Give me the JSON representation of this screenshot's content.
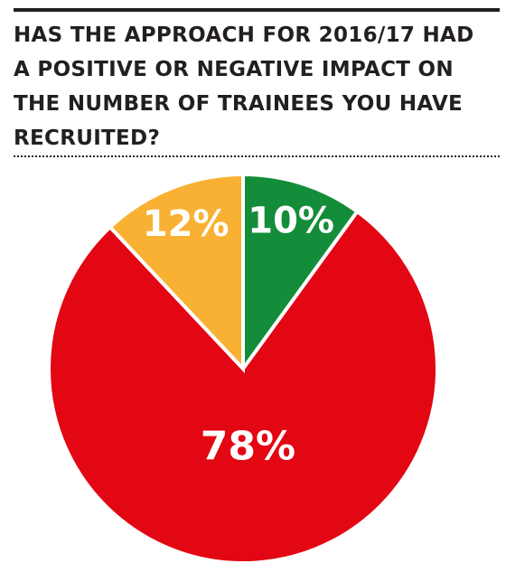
{
  "chart_data": {
    "type": "pie",
    "title": "HAS THE APPROACH FOR 2016/17 HAD A POSITIVE OR NEGATIVE IMPACT ON THE NUMBER OF TRAINEES YOU HAVE RECRUITED?",
    "slices": [
      {
        "value": 10,
        "label": "10%",
        "color": "#138d3a"
      },
      {
        "value": 78,
        "label": "78%",
        "color": "#e30613"
      },
      {
        "value": 12,
        "label": "12%",
        "color": "#f8b133"
      }
    ],
    "start": "12 o'clock",
    "direction": "clockwise"
  },
  "colors": {
    "rule": "#231f20",
    "separator": "#ffffff"
  }
}
